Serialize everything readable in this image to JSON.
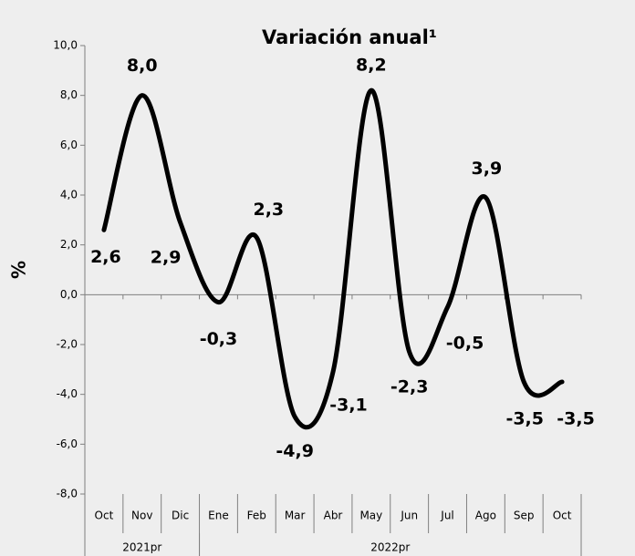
{
  "chart_data": {
    "type": "line",
    "title": "Variación anual¹",
    "y_label": "%",
    "categories": [
      "Oct",
      "Nov",
      "Dic",
      "Ene",
      "Feb",
      "Mar",
      "Abr",
      "May",
      "Jun",
      "Jul",
      "Ago",
      "Sep",
      "Oct"
    ],
    "category_groups": [
      "2021pr",
      "2021pr",
      "2021pr",
      "2022pr",
      "2022pr",
      "2022pr",
      "2022pr",
      "2022pr",
      "2022pr",
      "2022pr",
      "2022pr",
      "2022pr",
      "2022pr"
    ],
    "values": [
      2.6,
      8.0,
      2.9,
      -0.3,
      2.3,
      -4.9,
      -3.1,
      8.2,
      -2.3,
      -0.5,
      3.9,
      -3.5,
      -3.5
    ],
    "value_labels": [
      "2,6",
      "8,0",
      "2,9",
      "-0,3",
      "2,3",
      "-4,9",
      "-3,1",
      "8,2",
      "-2,3",
      "-0,5",
      "3,9",
      "-3,5",
      "-3,5"
    ],
    "color": "#000000",
    "ylim": [
      -8,
      10
    ],
    "yticks": [
      {
        "value": -8,
        "label": "-8,0"
      },
      {
        "value": -6,
        "label": "-6,0"
      },
      {
        "value": -4,
        "label": "-4,0"
      },
      {
        "value": -2,
        "label": "-2,0"
      },
      {
        "value": 0,
        "label": "0,0"
      },
      {
        "value": 2,
        "label": "2,0"
      },
      {
        "value": 4,
        "label": "4,0"
      },
      {
        "value": 6,
        "label": "6,0"
      },
      {
        "value": 8,
        "label": "8,0"
      },
      {
        "value": 10,
        "label": "10,0"
      }
    ],
    "grid": false
  }
}
